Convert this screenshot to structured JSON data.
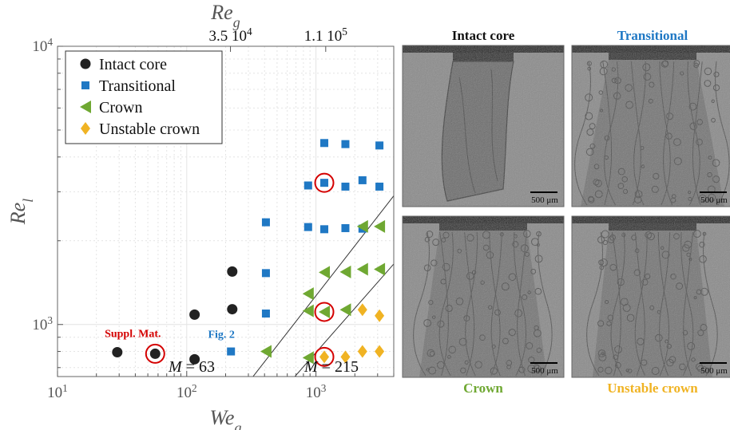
{
  "chart_data": {
    "type": "scatter",
    "xscale": "log",
    "yscale": "log",
    "xlim": [
      10,
      4000
    ],
    "ylim": [
      650,
      10000
    ],
    "xlabel": "We",
    "xlabel_sub": "g",
    "ylabel": "Re",
    "ylabel_sub": "l",
    "top_axis_label": "Re",
    "top_axis_label_sub": "g",
    "x_ticks": [
      {
        "value": 10,
        "base": "10",
        "exp": "1"
      },
      {
        "value": 100,
        "base": "10",
        "exp": "2"
      },
      {
        "value": 1000,
        "base": "10",
        "exp": "3"
      }
    ],
    "y_ticks": [
      {
        "value": 1000,
        "base": "10",
        "exp": "3"
      },
      {
        "value": 10000,
        "base": "10",
        "exp": "4"
      }
    ],
    "top_ticks": [
      {
        "value": 218,
        "label_base": "3.5 10",
        "label_exp": "4"
      },
      {
        "value": 1190,
        "label_base": "1.1 10",
        "label_exp": "5"
      }
    ],
    "grid": true,
    "legend_position": "top-left",
    "colors": {
      "intact": "#222222",
      "transitional": "#1f78c4",
      "crown": "#6fa832",
      "unstable": "#f0b323",
      "highlight": "#d40000",
      "line": "#333333"
    },
    "series": [
      {
        "name": "Intact core",
        "marker": "circle",
        "points": [
          [
            29,
            795
          ],
          [
            57,
            785
          ],
          [
            115,
            1085
          ],
          [
            115,
            750
          ],
          [
            225,
            1550
          ],
          [
            225,
            1135
          ]
        ]
      },
      {
        "name": "Transitional",
        "marker": "square",
        "points": [
          [
            220,
            800
          ],
          [
            410,
            2330
          ],
          [
            410,
            1530
          ],
          [
            410,
            1095
          ],
          [
            870,
            3160
          ],
          [
            870,
            2240
          ],
          [
            1160,
            4490
          ],
          [
            1160,
            3230
          ],
          [
            1160,
            2200
          ],
          [
            1690,
            4450
          ],
          [
            1690,
            3130
          ],
          [
            1690,
            2220
          ],
          [
            2290,
            3300
          ],
          [
            2290,
            2210
          ],
          [
            3100,
            4400
          ],
          [
            3100,
            3130
          ]
        ]
      },
      {
        "name": "Crown",
        "marker": "triangle-left",
        "points": [
          [
            410,
            800
          ],
          [
            870,
            1290
          ],
          [
            870,
            1120
          ],
          [
            870,
            760
          ],
          [
            1160,
            1540
          ],
          [
            1160,
            1110
          ],
          [
            1690,
            1545
          ],
          [
            1690,
            1130
          ],
          [
            2290,
            1580
          ],
          [
            2290,
            2250
          ],
          [
            3100,
            1580
          ],
          [
            3100,
            2250
          ]
        ]
      },
      {
        "name": "Unstable crown",
        "marker": "diamond",
        "points": [
          [
            1160,
            765
          ],
          [
            1690,
            765
          ],
          [
            2290,
            800
          ],
          [
            2290,
            1130
          ],
          [
            3100,
            800
          ],
          [
            3100,
            1075
          ]
        ]
      }
    ],
    "highlighted_points": [
      [
        57,
        785
      ],
      [
        1160,
        3230
      ],
      [
        1160,
        1110
      ],
      [
        1160,
        765
      ]
    ],
    "lines": [
      {
        "label_base": "M",
        "label_value": " = 63",
        "x1": 285,
        "y1": 600,
        "x2": 4000,
        "y2": 2900
      },
      {
        "label_base": "M",
        "label_value": " = 215",
        "x1": 590,
        "y1": 600,
        "x2": 4000,
        "y2": 1650
      }
    ],
    "annotations": [
      {
        "text": "Suppl. Mat.",
        "x": 57,
        "y": 800
      },
      {
        "text": "Fig. 2",
        "x": 220,
        "y": 800
      }
    ]
  },
  "photos": [
    {
      "title": "Intact core",
      "title_color": "#111111",
      "scale": "500 μm"
    },
    {
      "title": "Transitional",
      "title_color": "#1f78c4",
      "scale": "500 μm"
    },
    {
      "title": "Crown",
      "title_color": "#6fa832",
      "scale": "500 μm"
    },
    {
      "title": "Unstable crown",
      "title_color": "#f0b323",
      "scale": "500 μm"
    }
  ]
}
